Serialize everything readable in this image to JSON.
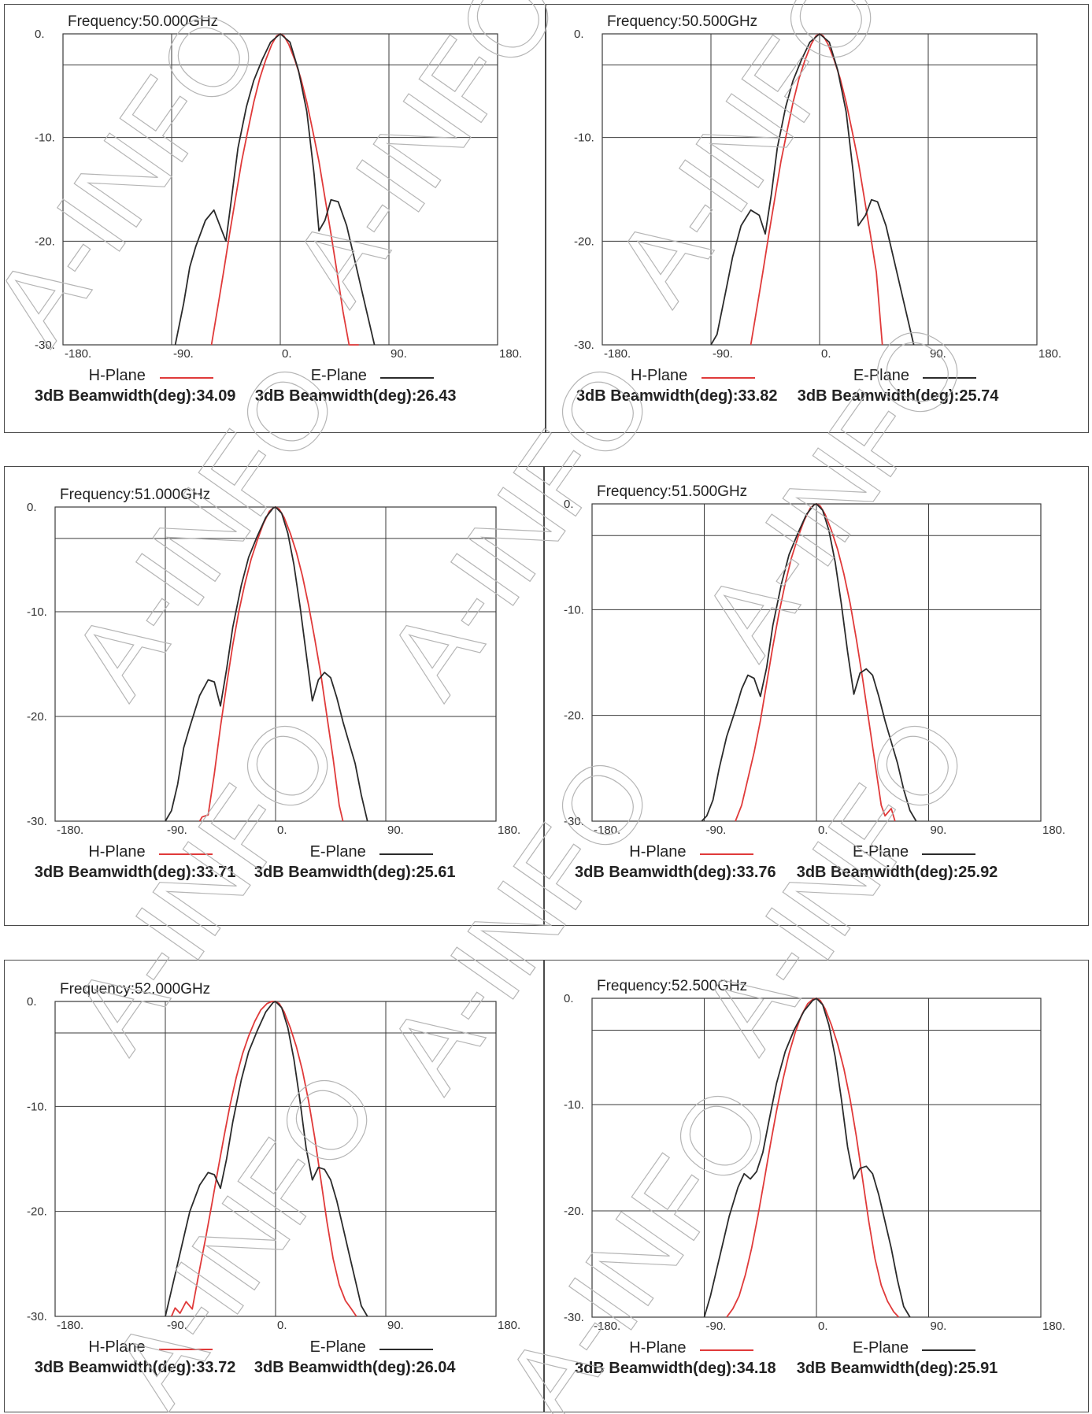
{
  "colors": {
    "h_plane": "#e03a3a",
    "e_plane": "#2b2b2b",
    "grid": "#3a3a3a",
    "watermark": "#b5b5b5"
  },
  "watermark_text": "A-INFO",
  "chart_data": [
    {
      "type": "line",
      "title": "Frequency:50.000GHz",
      "xlim": [
        -180,
        180
      ],
      "ylim": [
        -30,
        0
      ],
      "x_ticks": [
        "-180.",
        "-90.",
        "0.",
        "90.",
        "180."
      ],
      "y_ticks": [
        "0.",
        "-10.",
        "-20.",
        "-30."
      ],
      "grid": true,
      "series": [
        {
          "name": "H-Plane",
          "color": "#e03a3a",
          "beamwidth_label": "3dB Beamwidth(deg):34.09",
          "x": [
            -57,
            -52,
            -47,
            -42,
            -37,
            -32,
            -27,
            -22,
            -17,
            -12,
            -7,
            -3,
            0,
            3,
            7,
            12,
            17,
            22,
            27,
            32,
            37,
            42,
            47,
            52,
            57,
            65
          ],
          "y": [
            -30,
            -26.5,
            -23,
            -19.3,
            -15.8,
            -12.3,
            -9.4,
            -6.6,
            -4.3,
            -2.5,
            -1,
            -0.2,
            0,
            -0.2,
            -1,
            -2.5,
            -4.3,
            -6.6,
            -9.4,
            -12.3,
            -15.8,
            -19.3,
            -23,
            -26.8,
            -30,
            -30
          ]
        },
        {
          "name": "E-Plane",
          "color": "#2b2b2b",
          "beamwidth_label": "3dB Beamwidth(deg):26.43",
          "x": [
            -87,
            -80,
            -75,
            -70,
            -62,
            -55,
            -50,
            -45,
            -40,
            -35,
            -28,
            -22,
            -15,
            -8,
            0,
            8,
            15,
            22,
            28,
            32,
            37,
            42,
            48,
            55,
            62,
            70,
            78
          ],
          "y": [
            -30,
            -26,
            -22.5,
            -20.5,
            -18,
            -17,
            -18.5,
            -20,
            -15.5,
            -11,
            -7,
            -4.5,
            -2.5,
            -0.8,
            0,
            -0.8,
            -3.5,
            -7.5,
            -13.5,
            -19,
            -18,
            -16,
            -16.2,
            -18.5,
            -22,
            -26,
            -30
          ]
        }
      ]
    },
    {
      "type": "line",
      "title": "Frequency:50.500GHz",
      "xlim": [
        -180,
        180
      ],
      "ylim": [
        -30,
        0
      ],
      "x_ticks": [
        "-180.",
        "-90.",
        "0.",
        "90.",
        "180."
      ],
      "y_ticks": [
        "0.",
        "-10.",
        "-20.",
        "-30."
      ],
      "grid": true,
      "series": [
        {
          "name": "H-Plane",
          "color": "#e03a3a",
          "beamwidth_label": "3dB Beamwidth(deg):33.82",
          "x": [
            -57,
            -52,
            -47,
            -42,
            -37,
            -32,
            -27,
            -22,
            -17,
            -12,
            -7,
            -3,
            0,
            3,
            7,
            12,
            17,
            22,
            27,
            32,
            37,
            42,
            47,
            52
          ],
          "y": [
            -30,
            -26.5,
            -23,
            -19.3,
            -15.8,
            -12.3,
            -9.4,
            -6.6,
            -4.3,
            -2.5,
            -1,
            -0.2,
            0,
            -0.2,
            -1,
            -2.5,
            -4.3,
            -6.6,
            -9.4,
            -12.3,
            -15.8,
            -19.3,
            -23,
            -30
          ]
        },
        {
          "name": "E-Plane",
          "color": "#2b2b2b",
          "beamwidth_label": "3dB Beamwidth(deg):25.74",
          "x": [
            -90,
            -85,
            -78,
            -72,
            -65,
            -57,
            -50,
            -45,
            -40,
            -35,
            -28,
            -22,
            -15,
            -8,
            0,
            8,
            15,
            22,
            28,
            32,
            38,
            43,
            48,
            55,
            62,
            70,
            78
          ],
          "y": [
            -30,
            -29,
            -25,
            -21.5,
            -18.5,
            -17,
            -17.5,
            -19.3,
            -15.5,
            -11,
            -7,
            -4.5,
            -2.5,
            -0.8,
            0,
            -0.8,
            -3.5,
            -7.5,
            -13.5,
            -18.5,
            -17.5,
            -16,
            -16.2,
            -18.5,
            -22,
            -26,
            -30
          ]
        }
      ]
    },
    {
      "type": "line",
      "title": "Frequency:51.000GHz",
      "xlim": [
        -180,
        180
      ],
      "ylim": [
        -30,
        0
      ],
      "x_ticks": [
        "-180.",
        "-90.",
        "0.",
        "90.",
        "180."
      ],
      "y_ticks": [
        "0.",
        "-10.",
        "-20.",
        "-30."
      ],
      "grid": true,
      "series": [
        {
          "name": "H-Plane",
          "color": "#e03a3a",
          "beamwidth_label": "3dB Beamwidth(deg):33.71",
          "x": [
            -62,
            -60,
            -55,
            -50,
            -45,
            -40,
            -35,
            -30,
            -25,
            -20,
            -15,
            -10,
            -5,
            -2,
            0,
            3,
            7,
            12,
            17,
            22,
            27,
            32,
            37,
            42,
            47,
            52,
            55
          ],
          "y": [
            -30,
            -29.6,
            -29.4,
            -25.5,
            -21,
            -17,
            -13.2,
            -10,
            -7.3,
            -5,
            -3.2,
            -1.6,
            -0.4,
            -0.1,
            0,
            -0.2,
            -1,
            -2.5,
            -4.3,
            -6.6,
            -9.4,
            -12.6,
            -16,
            -20,
            -24,
            -28.5,
            -30
          ]
        },
        {
          "name": "E-Plane",
          "color": "#2b2b2b",
          "beamwidth_label": "3dB Beamwidth(deg):25.61",
          "x": [
            -90,
            -85,
            -80,
            -75,
            -70,
            -62,
            -55,
            -50,
            -45,
            -40,
            -35,
            -28,
            -22,
            -15,
            -8,
            -2,
            0,
            5,
            10,
            15,
            20,
            25,
            30,
            35,
            40,
            45,
            50,
            55,
            60,
            65,
            70,
            75
          ],
          "y": [
            -30,
            -29,
            -26.5,
            -23,
            -21,
            -18,
            -16.5,
            -16.7,
            -19,
            -15.5,
            -11.5,
            -7.5,
            -4.8,
            -2.8,
            -1,
            -0.1,
            0,
            -0.6,
            -2.5,
            -5.5,
            -9.5,
            -14,
            -18.5,
            -16.5,
            -15.8,
            -16.3,
            -18.2,
            -20.5,
            -22.5,
            -24.5,
            -27.5,
            -30
          ]
        }
      ]
    },
    {
      "type": "line",
      "title": "Frequency:51.500GHz",
      "xlim": [
        -180,
        180
      ],
      "ylim": [
        -30,
        0
      ],
      "x_ticks": [
        "-180.",
        "-90.",
        "0.",
        "90.",
        "180."
      ],
      "y_ticks": [
        "0.",
        "-10.",
        "-20.",
        "-30."
      ],
      "grid": true,
      "series": [
        {
          "name": "H-Plane",
          "color": "#e03a3a",
          "beamwidth_label": "3dB Beamwidth(deg):33.76",
          "x": [
            -65,
            -60,
            -55,
            -50,
            -45,
            -40,
            -35,
            -30,
            -25,
            -20,
            -15,
            -10,
            -5,
            -2,
            0,
            3,
            7,
            12,
            17,
            22,
            27,
            32,
            37,
            42,
            47,
            52,
            55,
            60,
            63
          ],
          "y": [
            -30,
            -28.5,
            -26,
            -23.5,
            -20.5,
            -17,
            -13.5,
            -10.3,
            -7.5,
            -5.1,
            -3.2,
            -1.6,
            -0.4,
            -0.1,
            0,
            -0.2,
            -1,
            -2.5,
            -4.3,
            -6.6,
            -9.4,
            -12.8,
            -16.5,
            -20.5,
            -24.5,
            -28.5,
            -29.5,
            -28.8,
            -30
          ]
        },
        {
          "name": "E-Plane",
          "color": "#2b2b2b",
          "beamwidth_label": "3dB Beamwidth(deg):25.92",
          "x": [
            -92,
            -88,
            -83,
            -78,
            -72,
            -65,
            -60,
            -55,
            -50,
            -45,
            -40,
            -35,
            -28,
            -22,
            -15,
            -8,
            -2,
            0,
            5,
            10,
            15,
            20,
            25,
            30,
            35,
            40,
            45,
            50,
            55,
            60,
            65,
            70,
            75,
            80
          ],
          "y": [
            -30,
            -29.5,
            -28,
            -25,
            -22,
            -19.5,
            -17.5,
            -16.2,
            -16.5,
            -18.2,
            -15.5,
            -11.5,
            -7.5,
            -4.8,
            -2.8,
            -1,
            -0.1,
            0,
            -0.6,
            -2.5,
            -5.5,
            -9.5,
            -14,
            -18,
            -16,
            -15.6,
            -16.2,
            -18.2,
            -20.5,
            -22.5,
            -24.5,
            -27,
            -29,
            -30
          ]
        }
      ]
    },
    {
      "type": "line",
      "title": "Frequency:52.000GHz",
      "xlim": [
        -180,
        180
      ],
      "ylim": [
        -30,
        0
      ],
      "x_ticks": [
        "-180.",
        "-90.",
        "0.",
        "90.",
        "180."
      ],
      "y_ticks": [
        "0.",
        "-10.",
        "-20.",
        "-30."
      ],
      "grid": true,
      "series": [
        {
          "name": "H-Plane",
          "color": "#e03a3a",
          "beamwidth_label": "3dB Beamwidth(deg):33.72",
          "x": [
            -85,
            -82,
            -78,
            -73,
            -68,
            -62,
            -57,
            -52,
            -47,
            -42,
            -37,
            -32,
            -27,
            -22,
            -17,
            -12,
            -7,
            -3,
            0,
            3,
            7,
            12,
            17,
            22,
            27,
            32,
            37,
            42,
            47,
            52,
            57,
            62,
            66
          ],
          "y": [
            -30,
            -29.2,
            -29.7,
            -28.6,
            -29.3,
            -25.5,
            -22.5,
            -19.3,
            -16,
            -12.8,
            -9.8,
            -7.2,
            -5,
            -3.3,
            -1.9,
            -0.8,
            -0.2,
            0,
            0,
            -0.2,
            -1,
            -2.5,
            -4.3,
            -6.6,
            -9.5,
            -13,
            -17,
            -21,
            -24.5,
            -27,
            -28.5,
            -29.3,
            -30
          ]
        },
        {
          "name": "E-Plane",
          "color": "#2b2b2b",
          "beamwidth_label": "3dB Beamwidth(deg):26.04",
          "x": [
            -90,
            -85,
            -80,
            -75,
            -70,
            -62,
            -55,
            -50,
            -45,
            -40,
            -35,
            -28,
            -22,
            -15,
            -8,
            -2,
            0,
            5,
            10,
            15,
            20,
            25,
            30,
            35,
            40,
            45,
            50,
            55,
            60,
            65,
            70,
            75
          ],
          "y": [
            -30,
            -27.5,
            -25,
            -22.5,
            -20,
            -17.5,
            -16.3,
            -16.5,
            -17.8,
            -15,
            -11.5,
            -7.5,
            -4.8,
            -2.8,
            -1,
            -0.1,
            0,
            -0.6,
            -2.5,
            -5.5,
            -9.5,
            -14,
            -17,
            -15.8,
            -16,
            -17,
            -19,
            -21.5,
            -24,
            -26.5,
            -29,
            -30
          ]
        }
      ]
    },
    {
      "type": "line",
      "title": "Frequency:52.500GHz",
      "xlim": [
        -180,
        180
      ],
      "ylim": [
        -30,
        0
      ],
      "x_ticks": [
        "-180.",
        "-90.",
        "0.",
        "90.",
        "180."
      ],
      "y_ticks": [
        "0.",
        "-10.",
        "-20.",
        "-30."
      ],
      "grid": true,
      "series": [
        {
          "name": "H-Plane",
          "color": "#e03a3a",
          "beamwidth_label": "3dB Beamwidth(deg):34.18",
          "x": [
            -72,
            -67,
            -62,
            -57,
            -52,
            -47,
            -42,
            -37,
            -32,
            -27,
            -22,
            -17,
            -12,
            -7,
            -3,
            0,
            3,
            7,
            12,
            17,
            22,
            27,
            32,
            37,
            42,
            47,
            52,
            57,
            62,
            66
          ],
          "y": [
            -30,
            -29.2,
            -28,
            -26,
            -23.5,
            -20.5,
            -17.2,
            -13.8,
            -10.6,
            -7.7,
            -5.2,
            -3.2,
            -1.6,
            -0.5,
            -0.1,
            0,
            -0.2,
            -1,
            -2.5,
            -4.3,
            -6.6,
            -9.5,
            -13,
            -17,
            -21,
            -24.5,
            -27,
            -28.5,
            -29.5,
            -30
          ]
        },
        {
          "name": "E-Plane",
          "color": "#2b2b2b",
          "beamwidth_label": "3dB Beamwidth(deg):25.91",
          "x": [
            -90,
            -85,
            -80,
            -75,
            -70,
            -63,
            -58,
            -53,
            -48,
            -43,
            -38,
            -32,
            -25,
            -18,
            -10,
            -3,
            0,
            5,
            10,
            15,
            20,
            25,
            30,
            35,
            40,
            45,
            50,
            55,
            60,
            65,
            70,
            75
          ],
          "y": [
            -30,
            -28,
            -25.5,
            -23,
            -20.5,
            -17.8,
            -16.5,
            -17,
            -16.3,
            -14.5,
            -11.5,
            -8,
            -5,
            -3,
            -1.2,
            -0.2,
            0,
            -0.6,
            -2.5,
            -5.5,
            -9.5,
            -14,
            -17,
            -16,
            -15.8,
            -16.5,
            -18.5,
            -21,
            -23.5,
            -26.5,
            -29,
            -30
          ]
        }
      ]
    }
  ]
}
